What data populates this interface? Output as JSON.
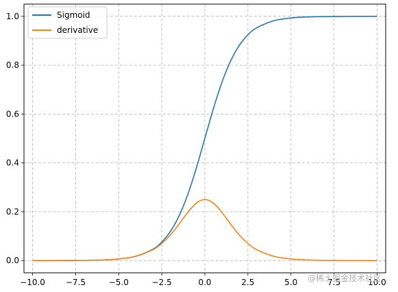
{
  "chart_data": {
    "type": "line",
    "title": "",
    "xlabel": "",
    "ylabel": "",
    "xlim": [
      -10.5,
      10.5
    ],
    "ylim": [
      -0.05,
      1.05
    ],
    "x_ticks": [
      -10.0,
      -7.5,
      -5.0,
      -2.5,
      0.0,
      2.5,
      5.0,
      7.5,
      10.0
    ],
    "x_tick_labels": [
      "−10.0",
      "−7.5",
      "−5.0",
      "−2.5",
      "0.0",
      "2.5",
      "5.0",
      "7.5",
      "10.0"
    ],
    "y_ticks": [
      0.0,
      0.2,
      0.4,
      0.6,
      0.8,
      1.0
    ],
    "y_tick_labels": [
      "0.0",
      "0.2",
      "0.4",
      "0.6",
      "0.8",
      "1.0"
    ],
    "grid": true,
    "grid_style": "dashed",
    "legend_position": "top-left",
    "x": [
      -10,
      -9,
      -8,
      -7,
      -6,
      -5,
      -4,
      -3,
      -2.5,
      -2,
      -1.5,
      -1,
      -0.5,
      0,
      0.5,
      1,
      1.5,
      2,
      2.5,
      3,
      4,
      5,
      6,
      7,
      8,
      9,
      10
    ],
    "series": [
      {
        "name": "Sigmoid",
        "color": "#1f77b4",
        "values": [
          0.0,
          0.0001,
          0.0003,
          0.0009,
          0.0025,
          0.0067,
          0.018,
          0.0474,
          0.0759,
          0.1192,
          0.1824,
          0.2689,
          0.3775,
          0.5,
          0.6225,
          0.7311,
          0.8176,
          0.8808,
          0.9241,
          0.9526,
          0.982,
          0.9933,
          0.9975,
          0.9991,
          0.9997,
          0.9999,
          1.0
        ]
      },
      {
        "name": "derivative",
        "color": "#ff7f0e",
        "values": [
          0.0,
          0.0001,
          0.0003,
          0.0009,
          0.0025,
          0.0066,
          0.0177,
          0.0452,
          0.0701,
          0.105,
          0.1491,
          0.1966,
          0.235,
          0.25,
          0.235,
          0.1966,
          0.1491,
          0.105,
          0.0701,
          0.0452,
          0.0177,
          0.0066,
          0.0025,
          0.0009,
          0.0003,
          0.0001,
          0.0
        ]
      }
    ]
  },
  "watermark": "@稀土掘金技术社区"
}
